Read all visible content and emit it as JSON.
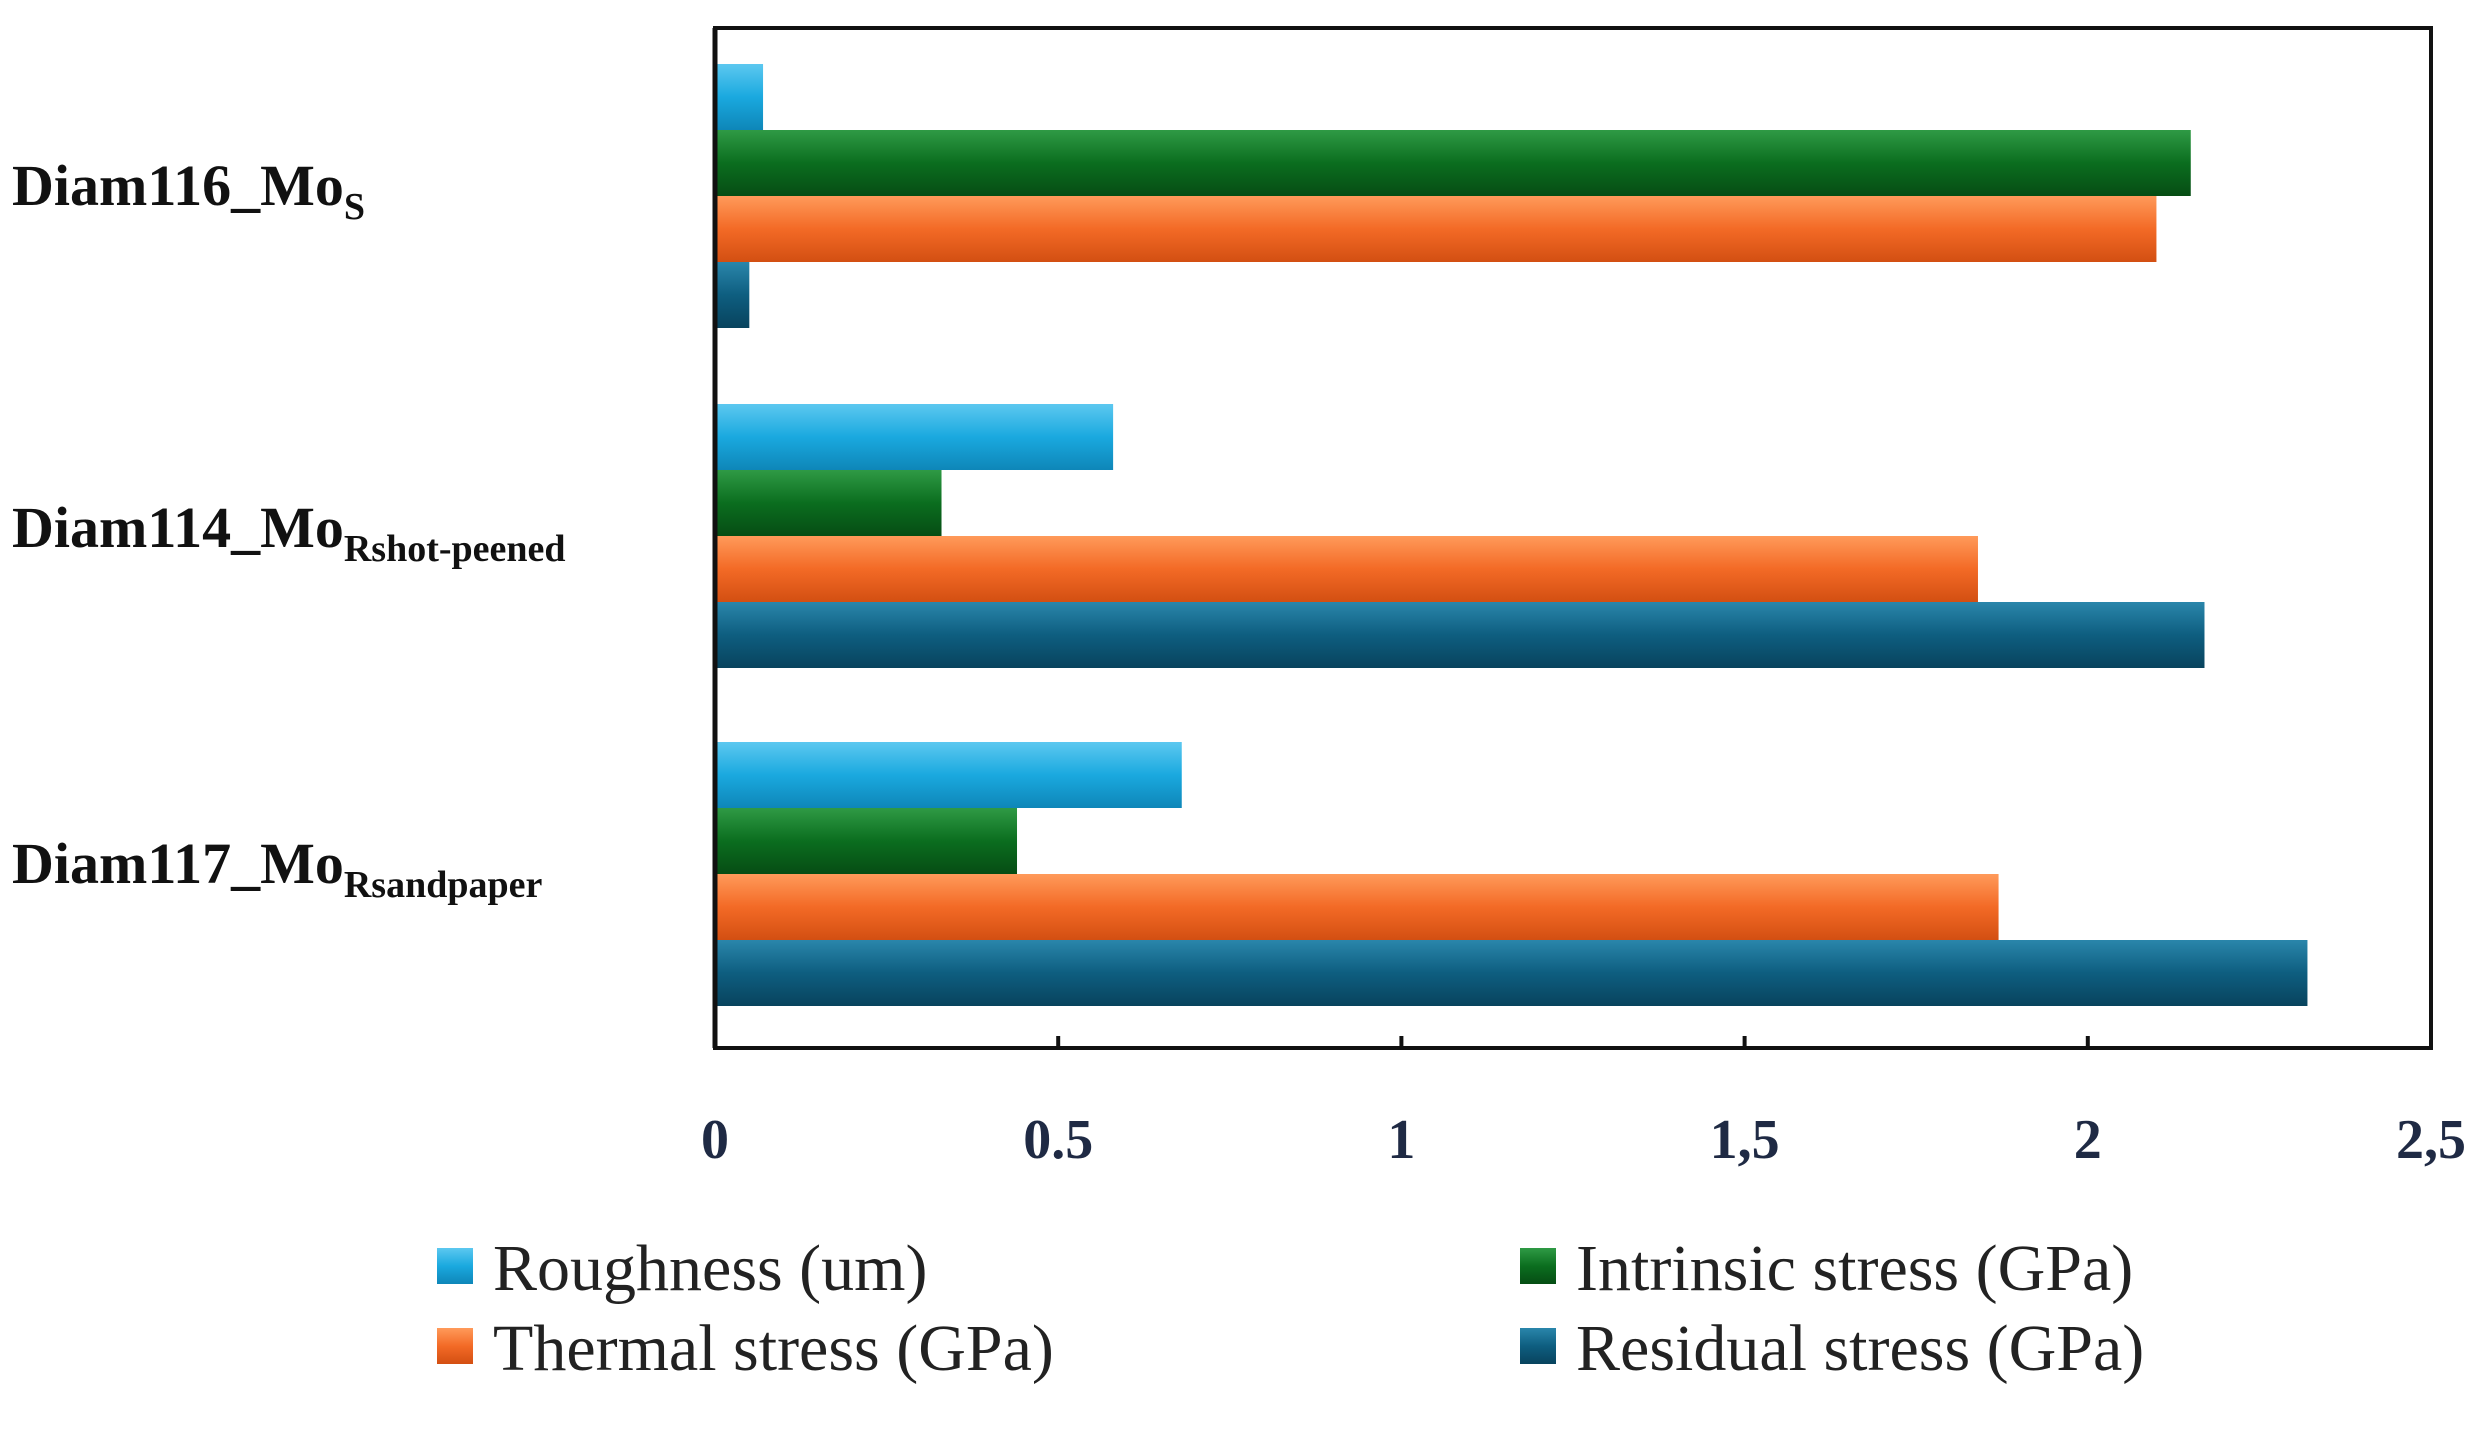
{
  "chart_data": {
    "type": "bar",
    "orientation": "horizontal",
    "title": "",
    "xlabel": "",
    "ylabel": "",
    "xlim": [
      0,
      2.5
    ],
    "x_ticks": [
      "0",
      "0.5",
      "1",
      "1,5",
      "2",
      "2,5"
    ],
    "x_tick_values": [
      0,
      0.5,
      1,
      1.5,
      2,
      2.5
    ],
    "grid": false,
    "legend_position": "bottom",
    "categories": [
      {
        "main": "Diam116_Mo",
        "sub": "S"
      },
      {
        "main": "Diam114_Mo",
        "sub": "Rshot-peened"
      },
      {
        "main": "Diam117_Mo",
        "sub": "Rsandpaper"
      }
    ],
    "series": [
      {
        "name": "Roughness (um)",
        "color": "#1aa9df",
        "values": [
          0.07,
          0.58,
          0.68
        ]
      },
      {
        "name": "Intrinsic stress (GPa)",
        "color": "#0b6e1f",
        "values": [
          2.15,
          0.33,
          0.44
        ]
      },
      {
        "name": "Thermal stress (GPa)",
        "color": "#f36a26",
        "values": [
          2.1,
          1.84,
          1.87
        ]
      },
      {
        "name": "Residual stress (GPa)",
        "color": "#0e5e80",
        "values": [
          0.05,
          2.17,
          2.32
        ]
      }
    ]
  }
}
